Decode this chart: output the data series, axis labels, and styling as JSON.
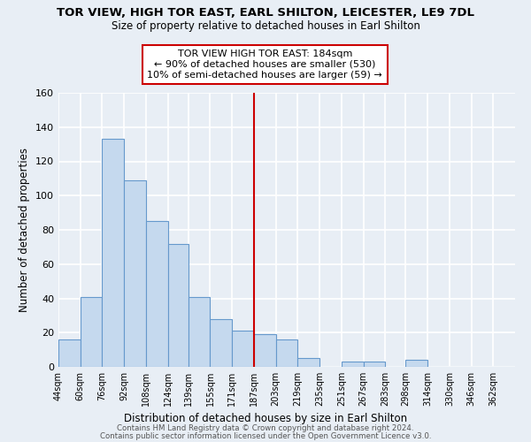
{
  "title": "TOR VIEW, HIGH TOR EAST, EARL SHILTON, LEICESTER, LE9 7DL",
  "subtitle": "Size of property relative to detached houses in Earl Shilton",
  "xlabel": "Distribution of detached houses by size in Earl Shilton",
  "ylabel": "Number of detached properties",
  "bar_labels": [
    "44sqm",
    "60sqm",
    "76sqm",
    "92sqm",
    "108sqm",
    "124sqm",
    "139sqm",
    "155sqm",
    "171sqm",
    "187sqm",
    "203sqm",
    "219sqm",
    "235sqm",
    "251sqm",
    "267sqm",
    "283sqm",
    "298sqm",
    "314sqm",
    "330sqm",
    "346sqm",
    "362sqm"
  ],
  "bar_heights": [
    16,
    41,
    133,
    109,
    85,
    72,
    41,
    28,
    21,
    19,
    16,
    5,
    0,
    3,
    3,
    0,
    4,
    0,
    0,
    0,
    0
  ],
  "bar_color": "#c5d9ee",
  "bar_edge_color": "#6699cc",
  "annotation_box_text": "TOR VIEW HIGH TOR EAST: 184sqm\n← 90% of detached houses are smaller (530)\n10% of semi-detached houses are larger (59) →",
  "annotation_line_color": "#cc0000",
  "annotation_box_edge_color": "#cc0000",
  "ylim": [
    0,
    160
  ],
  "yticks": [
    0,
    20,
    40,
    60,
    80,
    100,
    120,
    140,
    160
  ],
  "footer1": "Contains HM Land Registry data © Crown copyright and database right 2024.",
  "footer2": "Contains public sector information licensed under the Open Government Licence v3.0.",
  "background_color": "#e8eef5",
  "grid_color": "#ffffff",
  "bin_edges": [
    44,
    60,
    76,
    92,
    108,
    124,
    139,
    155,
    171,
    187,
    203,
    219,
    235,
    251,
    267,
    283,
    298,
    314,
    330,
    346,
    362,
    378
  ]
}
